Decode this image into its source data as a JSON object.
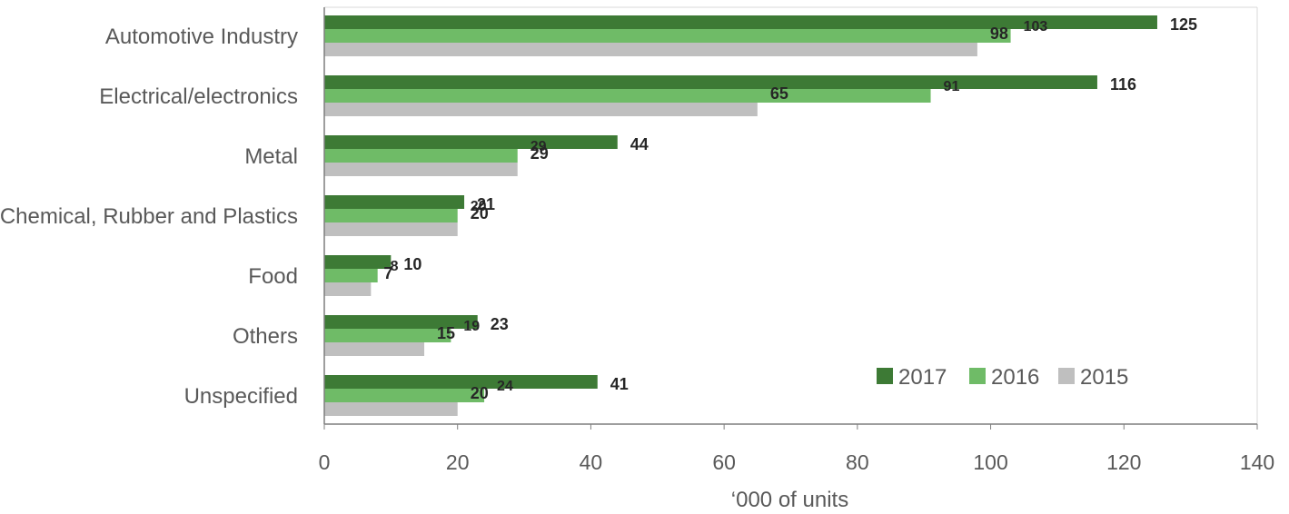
{
  "chart_data": {
    "type": "bar",
    "orientation": "horizontal",
    "categories": [
      "Automotive Industry",
      "Electrical/electronics",
      "Metal",
      "Chemical, Rubber and Plastics",
      "Food",
      "Others",
      "Unspecified"
    ],
    "series": [
      {
        "name": "2017",
        "color": "#3d7a35",
        "values": [
          125,
          116,
          44,
          21,
          10,
          23,
          41
        ]
      },
      {
        "name": "2016",
        "color": "#6fbb67",
        "values": [
          103,
          91,
          29,
          20,
          8,
          19,
          24
        ]
      },
      {
        "name": "2015",
        "color": "#bfbfbf",
        "values": [
          98,
          65,
          29,
          20,
          7,
          15,
          20
        ]
      }
    ],
    "x_ticks": [
      0,
      20,
      40,
      60,
      80,
      100,
      120,
      140
    ],
    "xlim": [
      0,
      140
    ],
    "xlabel": "‘000 of units",
    "title": "",
    "grid": false,
    "legend_position": "bottom-right"
  }
}
